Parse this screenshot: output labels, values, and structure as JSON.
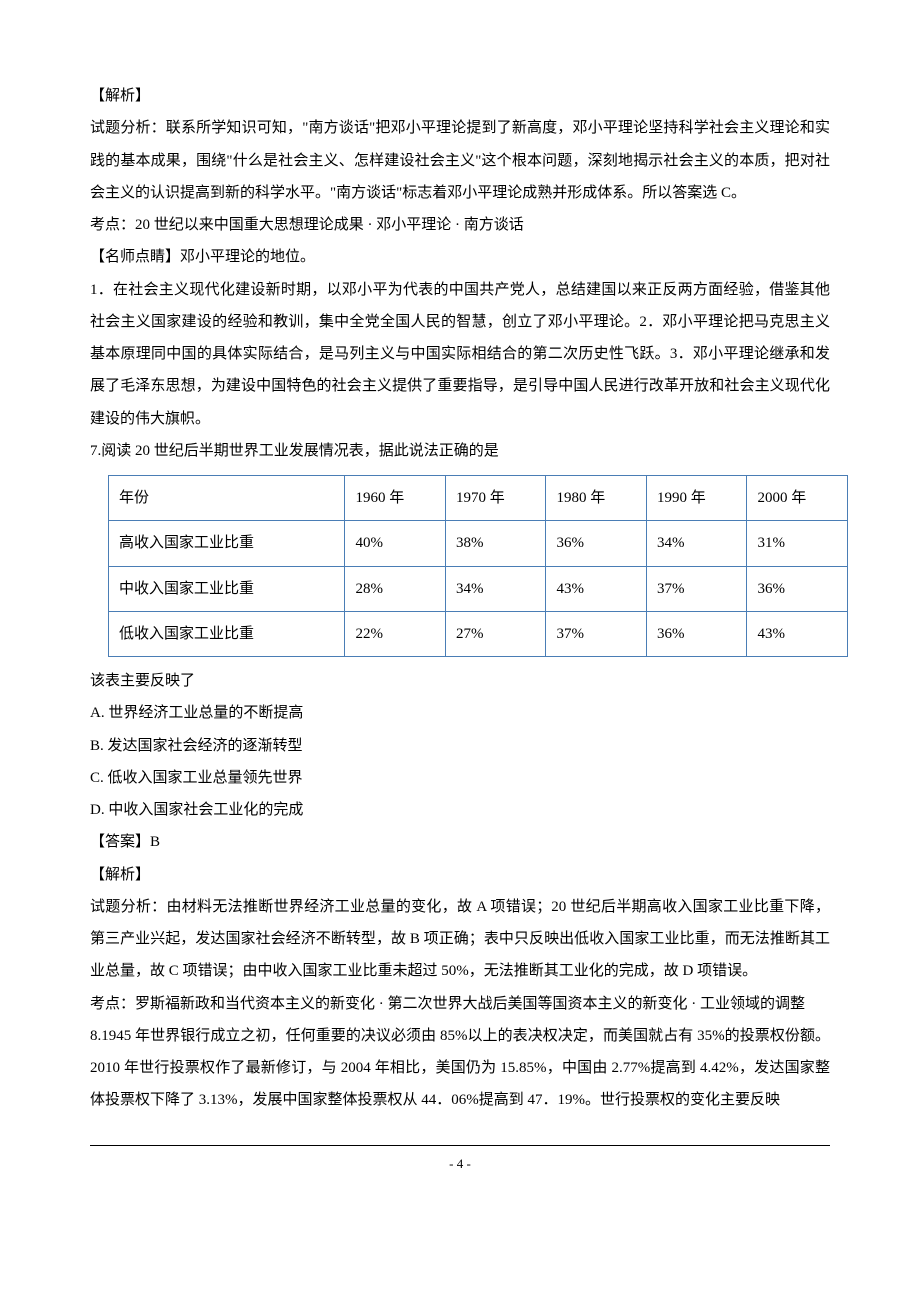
{
  "header1": "【解析】",
  "para1": "试题分析：联系所学知识可知，\"南方谈话\"把邓小平理论提到了新高度，邓小平理论坚持科学社会主义理论和实践的基本成果，围绕\"什么是社会主义、怎样建设社会主义\"这个根本问题，深刻地揭示社会主义的本质，把对社会主义的认识提高到新的科学水平。\"南方谈话\"标志着邓小平理论成熟并形成体系。所以答案选 C。",
  "para2": "考点：20 世纪以来中国重大思想理论成果 · 邓小平理论 · 南方谈话",
  "header2": "【名师点睛】邓小平理论的地位。",
  "para3": "1．在社会主义现代化建设新时期，以邓小平为代表的中国共产党人，总结建国以来正反两方面经验，借鉴其他社会主义国家建设的经验和教训，集中全党全国人民的智慧，创立了邓小平理论。2．邓小平理论把马克思主义基本原理同中国的具体实际结合，是马列主义与中国实际相结合的第二次历史性飞跃。3．邓小平理论继承和发展了毛泽东思想，为建设中国特色的社会主义提供了重要指导，是引导中国人民进行改革开放和社会主义现代化建设的伟大旗帜。",
  "q7_intro": "7.阅读 20 世纪后半期世界工业发展情况表，据此说法正确的是",
  "table": {
    "border_color": "#4a7db5",
    "columns": [
      "年份",
      "1960 年",
      "1970 年",
      "1980 年",
      "1990 年",
      "2000 年"
    ],
    "rows": [
      [
        "高收入国家工业比重",
        "40%",
        "38%",
        "36%",
        "34%",
        "31%"
      ],
      [
        "中收入国家工业比重",
        "28%",
        "34%",
        "43%",
        "37%",
        "36%"
      ],
      [
        "低收入国家工业比重",
        "22%",
        "27%",
        "37%",
        "36%",
        "43%"
      ]
    ]
  },
  "q7_sub": "该表主要反映了",
  "opt_a": "A.  世界经济工业总量的不断提高",
  "opt_b": "B.  发达国家社会经济的逐渐转型",
  "opt_c": "C.  低收入国家工业总量领先世界",
  "opt_d": "D.  中收入国家社会工业化的完成",
  "answer": "【答案】B",
  "header3": "【解析】",
  "para4": "试题分析：由材料无法推断世界经济工业总量的变化，故 A 项错误；20 世纪后半期高收入国家工业比重下降，第三产业兴起，发达国家社会经济不断转型，故 B 项正确；表中只反映出低收入国家工业比重，而无法推断其工业总量，故 C 项错误；由中收入国家工业比重未超过 50%，无法推断其工业化的完成，故 D 项错误。",
  "para5": "考点：罗斯福新政和当代资本主义的新变化 · 第二次世界大战后美国等国资本主义的新变化 · 工业领域的调整",
  "q8": "8.1945 年世界银行成立之初，任何重要的决议必须由 85%以上的表决权决定，而美国就占有 35%的投票权份额。2010 年世行投票权作了最新修订，与 2004 年相比，美国仍为 15.85%，中国由 2.77%提高到 4.42%，发达国家整体投票权下降了 3.13%，发展中国家整体投票权从 44．06%提高到 47．19%。世行投票权的变化主要反映",
  "page_num": "- 4 -"
}
